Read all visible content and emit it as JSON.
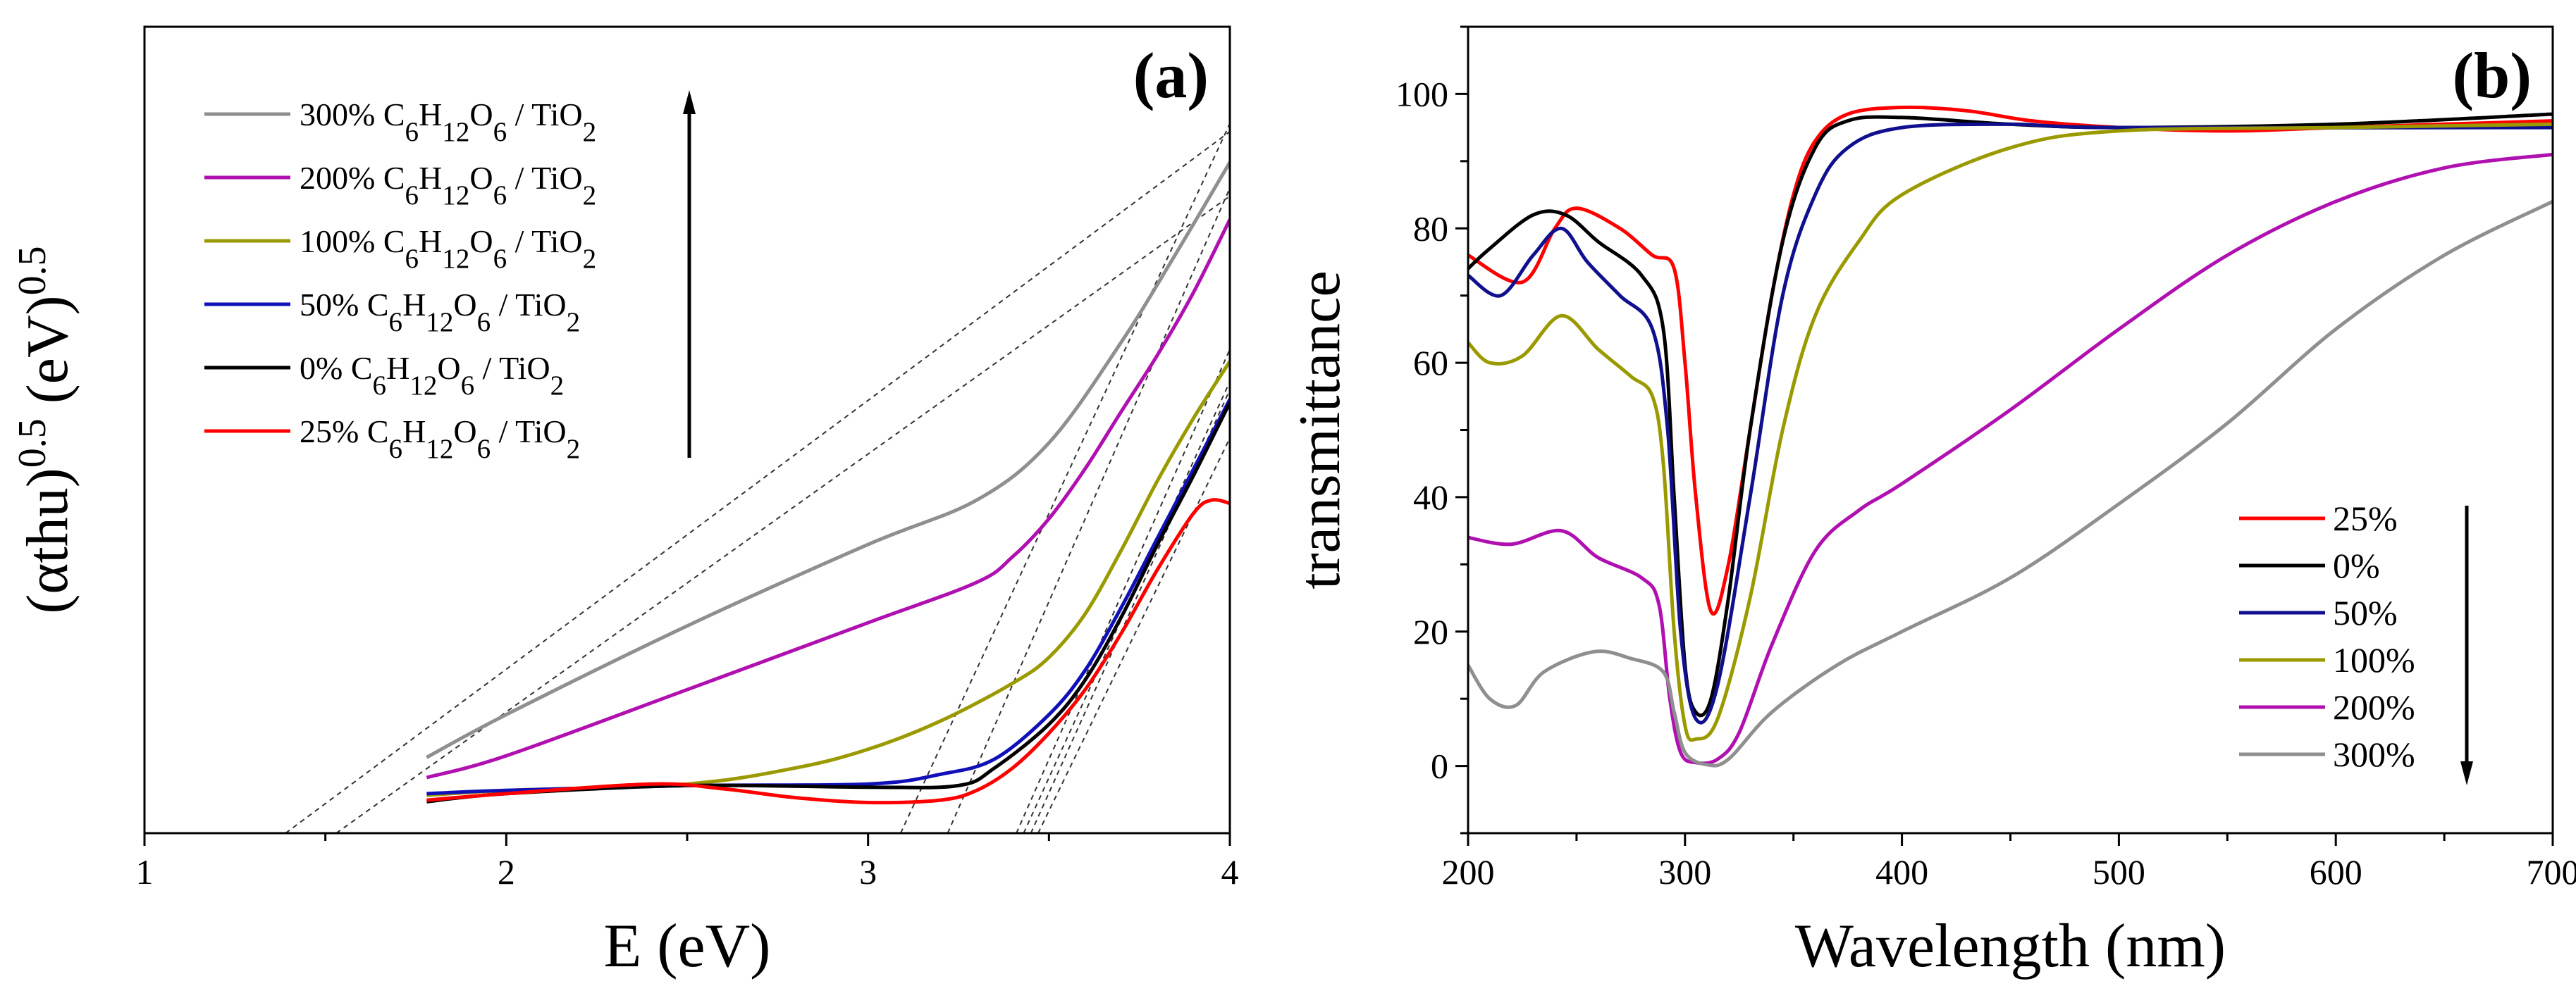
{
  "chart_data": [
    {
      "panel_label": "(a)",
      "type": "line",
      "xlabel": "E (eV)",
      "ylabel": {
        "base1": "(αthu)",
        "exp1": "0.5",
        "base2": " (eV)",
        "exp2": "0.5"
      },
      "xlim": [
        1,
        4
      ],
      "ylim": [
        0,
        100
      ],
      "y_units": "arbitrary",
      "xticks": [
        1,
        2,
        3,
        4
      ],
      "xticklabels": [
        "1",
        "2",
        "3",
        "4"
      ],
      "legend_position": "top-left",
      "legend_arrow": "up",
      "series": [
        {
          "name": "300% C6H12O6 / TiO2",
          "percent": "300%",
          "compound": "C6H12O6 / TiO2",
          "color": "#8f8f8f",
          "x": [
            1.78,
            2.0,
            2.5,
            3.0,
            3.3,
            3.5,
            3.7,
            3.85,
            4.0
          ],
          "y": [
            9.4,
            14.7,
            25.7,
            35.8,
            41.3,
            48.4,
            60.9,
            71.8,
            83.2
          ]
        },
        {
          "name": "200% C6H12O6 / TiO2",
          "percent": "200%",
          "compound": "C6H12O6 / TiO2",
          "color": "#b010b0",
          "x": [
            1.78,
            2.0,
            2.5,
            3.0,
            3.3,
            3.4,
            3.5,
            3.6,
            3.7,
            3.8,
            3.9,
            4.0
          ],
          "y": [
            6.9,
            9.6,
            17.8,
            26.1,
            31.1,
            34.3,
            39.0,
            45.2,
            52.3,
            59.3,
            67.1,
            76.1
          ]
        },
        {
          "name": "100% C6H12O6 / TiO2",
          "percent": "100%",
          "compound": "C6H12O6 / TiO2",
          "color": "#9a9a00",
          "x": [
            1.78,
            2.0,
            2.5,
            2.8,
            3.0,
            3.2,
            3.4,
            3.5,
            3.6,
            3.7,
            3.8,
            3.9,
            4.0
          ],
          "y": [
            4.7,
            5.3,
            6.1,
            8.1,
            10.4,
            13.9,
            18.6,
            21.8,
            27.2,
            35.1,
            43.7,
            51.5,
            58.5
          ]
        },
        {
          "name": "50% C6H12O6 / TiO2",
          "percent": "50%",
          "compound": "C6H12O6 / TiO2",
          "color": "#1010b8",
          "x": [
            1.78,
            2.0,
            2.5,
            3.0,
            3.2,
            3.35,
            3.5,
            3.6,
            3.7,
            3.8,
            3.9,
            4.0
          ],
          "y": [
            4.9,
            5.3,
            5.9,
            6.1,
            7.3,
            9.2,
            14.7,
            20.2,
            28.0,
            36.6,
            45.2,
            53.8
          ]
        },
        {
          "name": "0% C6H12O6 / TiO2",
          "percent": "0%",
          "compound": "C6H12O6 / TiO2",
          "color": "#000000",
          "x": [
            1.78,
            2.0,
            2.5,
            3.0,
            3.25,
            3.35,
            3.5,
            3.6,
            3.7,
            3.8,
            3.9,
            4.0
          ],
          "y": [
            3.9,
            4.9,
            5.9,
            5.7,
            5.9,
            8.1,
            13.5,
            19.0,
            26.8,
            35.8,
            44.4,
            53.4
          ]
        },
        {
          "name": "25% C6H12O6 / TiO2",
          "percent": "25%",
          "compound": "C6H12O6 / TiO2",
          "color": "#ff0000",
          "x": [
            1.78,
            2.0,
            2.4,
            2.6,
            2.8,
            3.0,
            3.2,
            3.3,
            3.4,
            3.5,
            3.6,
            3.7,
            3.8,
            3.9,
            3.95,
            4.0
          ],
          "y": [
            4.1,
            4.9,
            6.1,
            5.5,
            4.4,
            3.8,
            4.1,
            5.3,
            8.1,
            12.4,
            17.8,
            24.8,
            32.7,
            39.7,
            41.3,
            40.9
          ]
        }
      ],
      "tangent_lines": [
        {
          "x_intercept": 1.39,
          "x_end": 4.0,
          "y_end": 87
        },
        {
          "x_intercept": 1.53,
          "x_end": 4.0,
          "y_end": 79
        },
        {
          "x_intercept": 3.09,
          "x_end": 4.0,
          "y_end": 88
        },
        {
          "x_intercept": 3.22,
          "x_end": 4.0,
          "y_end": 80
        },
        {
          "x_intercept": 3.41,
          "x_end": 4.0,
          "y_end": 60
        },
        {
          "x_intercept": 3.43,
          "x_end": 4.0,
          "y_end": 56
        },
        {
          "x_intercept": 3.45,
          "x_end": 4.0,
          "y_end": 55
        },
        {
          "x_intercept": 3.47,
          "x_end": 4.0,
          "y_end": 49
        }
      ]
    },
    {
      "panel_label": "(b)",
      "type": "line",
      "xlabel": "Wavelength (nm)",
      "ylabel": "transmittance",
      "xlim": [
        200,
        700
      ],
      "ylim": [
        -10,
        110
      ],
      "xticks": [
        200,
        300,
        400,
        500,
        600,
        700
      ],
      "xticklabels": [
        "200",
        "300",
        "400",
        "500",
        "600",
        "700"
      ],
      "yticks": [
        0,
        20,
        40,
        60,
        80,
        100
      ],
      "yticklabels": [
        "0",
        "20",
        "40",
        "60",
        "80",
        "100"
      ],
      "legend_position": "bottom-right",
      "legend_arrow": "down",
      "series": [
        {
          "name": "25%",
          "color": "#ff0000",
          "x": [
            200,
            225,
            240,
            250,
            270,
            285,
            295,
            300,
            305,
            312,
            320,
            330,
            340,
            350,
            360,
            375,
            400,
            430,
            460,
            500,
            550,
            600,
            700
          ],
          "y": [
            76,
            72,
            80,
            83,
            80,
            76,
            74,
            60,
            40,
            23,
            30,
            50,
            70,
            85,
            93,
            97,
            98,
            97.5,
            96,
            95,
            94.5,
            95,
            96
          ]
        },
        {
          "name": "0%",
          "color": "#000000",
          "x": [
            200,
            210,
            230,
            245,
            260,
            280,
            290,
            295,
            300,
            305,
            312,
            320,
            330,
            345,
            360,
            375,
            400,
            450,
            500,
            600,
            700
          ],
          "y": [
            74,
            77,
            82,
            82,
            78,
            73,
            65,
            40,
            15,
            8,
            10,
            25,
            50,
            78,
            92,
            96,
            96.5,
            95.5,
            95,
            95.5,
            97
          ]
        },
        {
          "name": "50%",
          "color": "#10108f",
          "x": [
            200,
            215,
            230,
            243,
            255,
            270,
            285,
            292,
            298,
            305,
            315,
            330,
            345,
            360,
            375,
            400,
            450,
            500,
            700
          ],
          "y": [
            73,
            70,
            76,
            80,
            75,
            70,
            65,
            50,
            20,
            7,
            12,
            40,
            70,
            85,
            92,
            95,
            95.5,
            95,
            95
          ]
        },
        {
          "name": "100%",
          "color": "#9a9a00",
          "x": [
            200,
            210,
            225,
            243,
            260,
            275,
            285,
            290,
            295,
            300,
            305,
            315,
            330,
            345,
            360,
            380,
            400,
            450,
            500,
            600,
            700
          ],
          "y": [
            63,
            60,
            61,
            67,
            62,
            58,
            55,
            45,
            20,
            6,
            4,
            7,
            25,
            50,
            67,
            78,
            85,
            92,
            94.5,
            95,
            95.5
          ]
        },
        {
          "name": "200%",
          "color": "#b010b0",
          "x": [
            200,
            220,
            243,
            260,
            280,
            288,
            293,
            298,
            305,
            315,
            325,
            340,
            360,
            380,
            400,
            450,
            500,
            550,
            600,
            650,
            700
          ],
          "y": [
            34,
            33,
            35,
            31,
            28,
            24,
            10,
            2,
            0.5,
            1,
            5,
            18,
            32,
            38,
            42,
            53,
            65,
            76,
            84,
            89,
            91
          ]
        },
        {
          "name": "300%",
          "color": "#8f8f8f",
          "x": [
            200,
            210,
            222,
            235,
            258,
            275,
            290,
            295,
            300,
            310,
            320,
            340,
            370,
            400,
            450,
            500,
            550,
            600,
            650,
            700
          ],
          "y": [
            15,
            10,
            9,
            14,
            17,
            16,
            14,
            8,
            2,
            0.2,
            1,
            8,
            15,
            20,
            28,
            39,
            51,
            65,
            76,
            84
          ]
        }
      ]
    }
  ]
}
